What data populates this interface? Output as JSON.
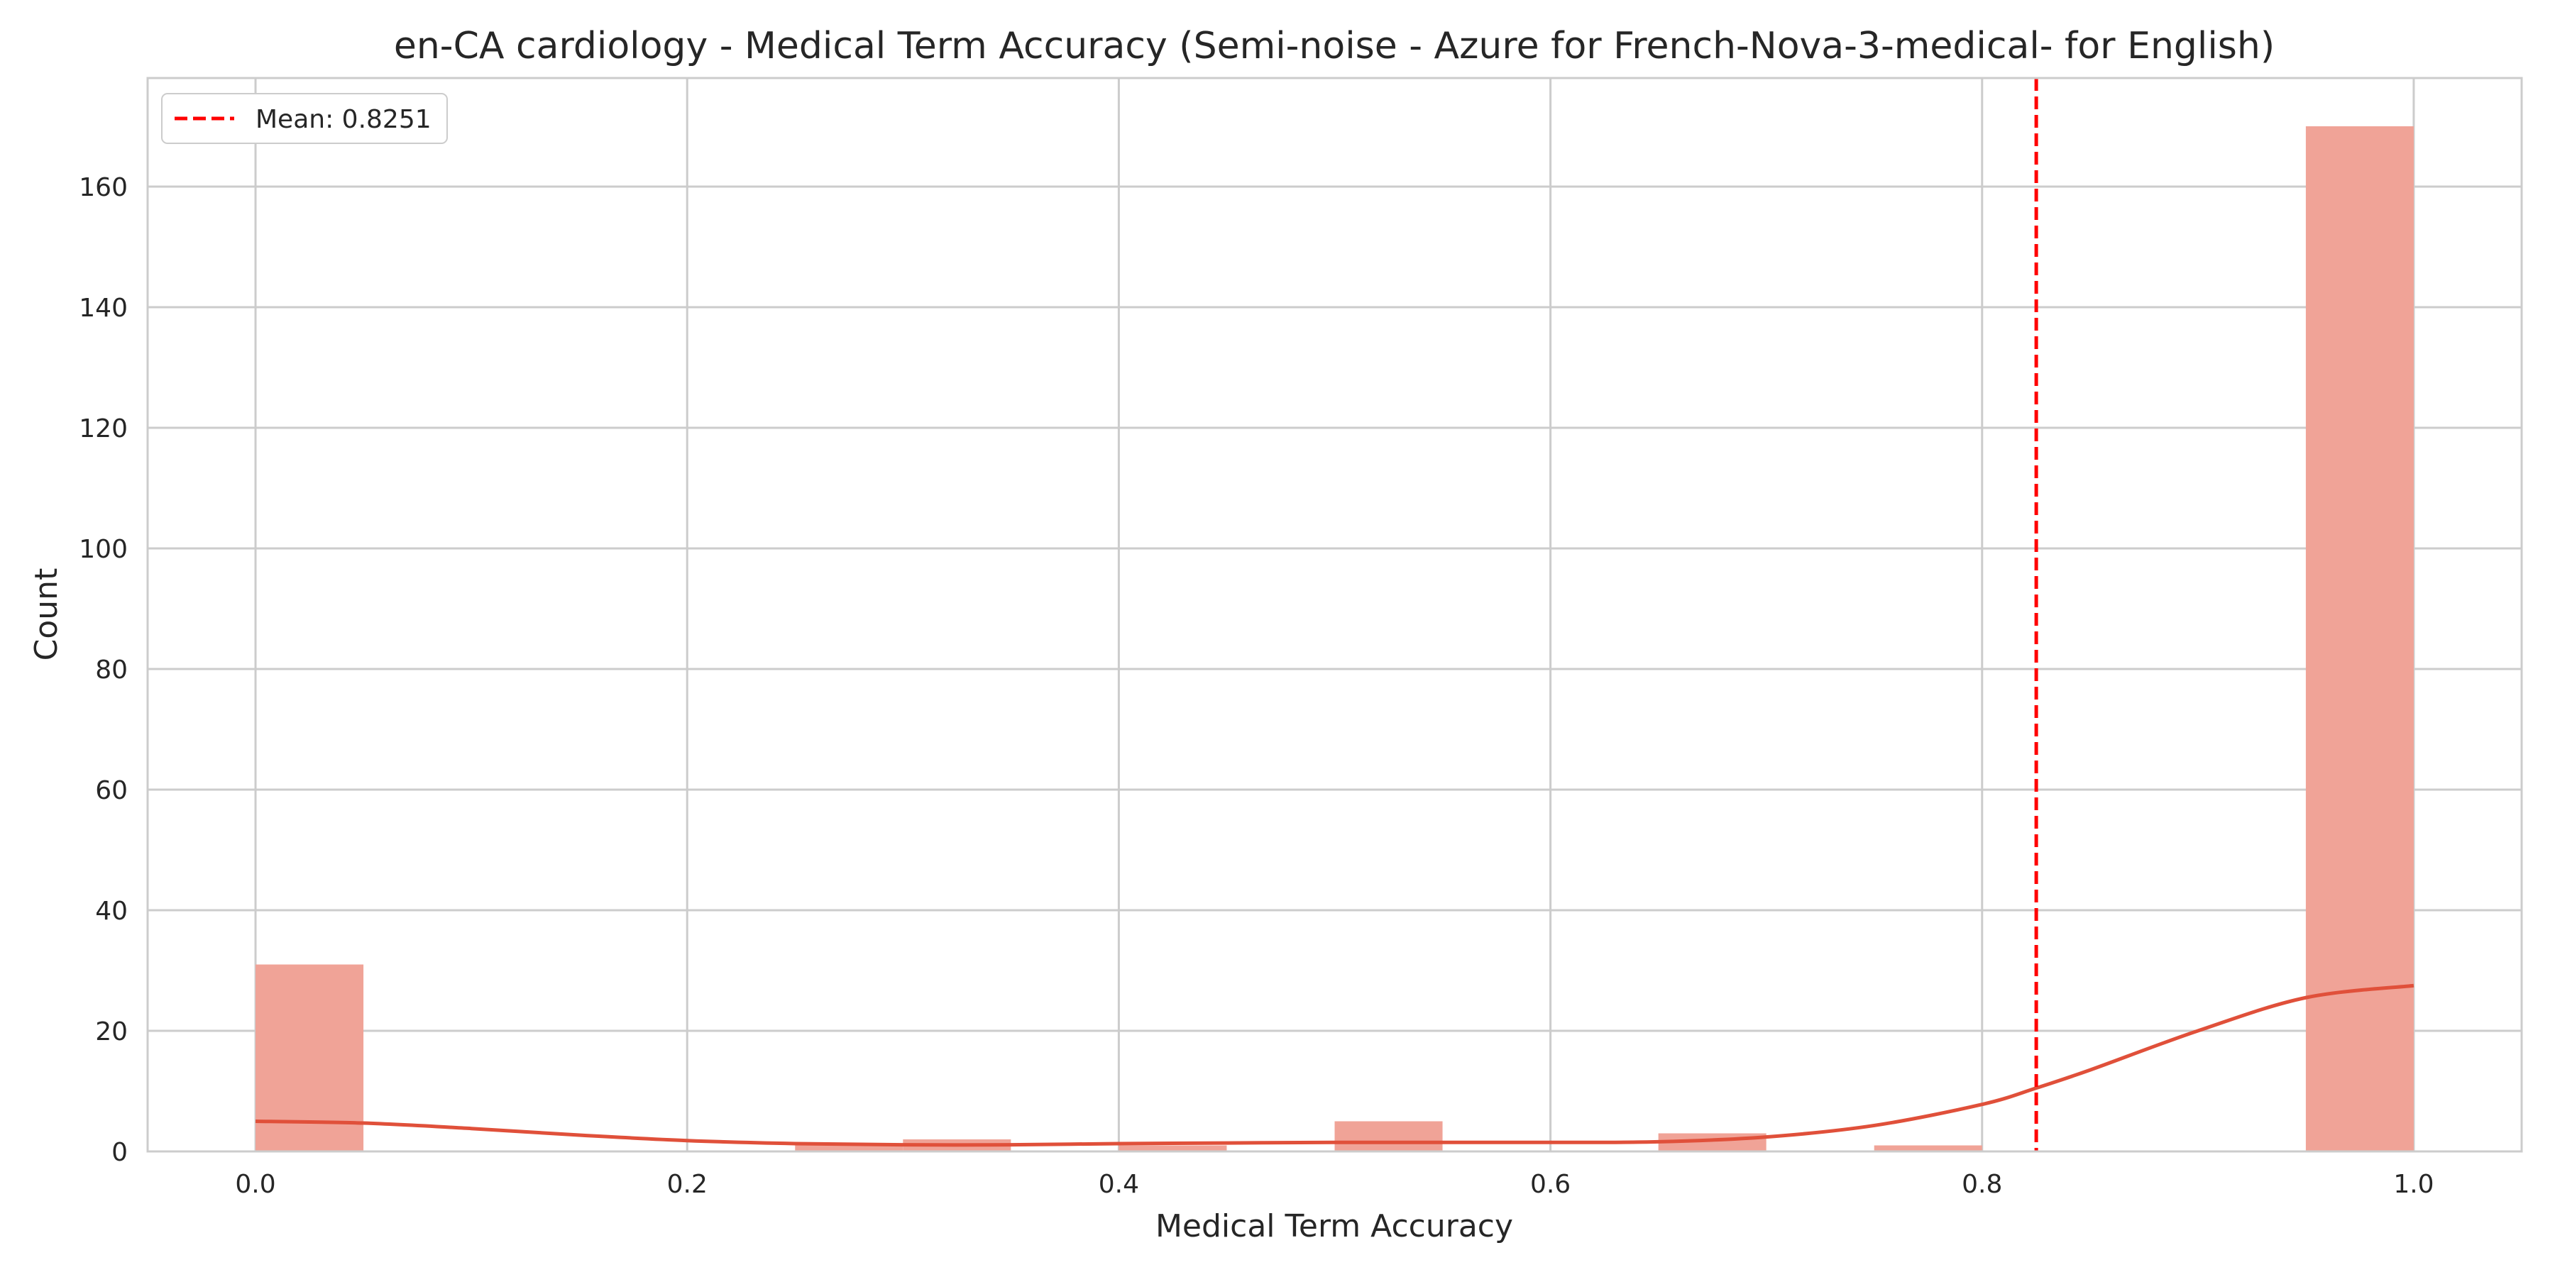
{
  "chart_data": {
    "type": "bar",
    "subtype": "histogram",
    "title": "en-CA cardiology - Medical Term Accuracy (Semi-noise - Azure for French-Nova-3-medical- for English)",
    "xlabel": "Medical Term Accuracy",
    "ylabel": "Count",
    "xlim": [
      -0.05,
      1.05
    ],
    "ylim": [
      0,
      178
    ],
    "grid": true,
    "legend_position": "upper-left",
    "x_ticks": [
      0.0,
      0.2,
      0.4,
      0.6,
      0.8,
      1.0
    ],
    "x_tick_labels": [
      "0.0",
      "0.2",
      "0.4",
      "0.6",
      "0.8",
      "1.0"
    ],
    "y_ticks": [
      0,
      20,
      40,
      60,
      80,
      100,
      120,
      140,
      160
    ],
    "y_tick_labels": [
      "0",
      "20",
      "40",
      "60",
      "80",
      "100",
      "120",
      "140",
      "160"
    ],
    "bin_edges": [
      0.0,
      0.05,
      0.1,
      0.15,
      0.2,
      0.25,
      0.3,
      0.35,
      0.4,
      0.45,
      0.5,
      0.55,
      0.6,
      0.65,
      0.7,
      0.75,
      0.8,
      0.85,
      0.9,
      0.95,
      1.0
    ],
    "counts": [
      31,
      0,
      0,
      0,
      0,
      1,
      2,
      0,
      1,
      0,
      5,
      0,
      0,
      3,
      0,
      1,
      0,
      0,
      0,
      170
    ],
    "bar_color": "#f0a397",
    "kde": {
      "color": "#e0503a",
      "x": [
        0.0,
        0.05,
        0.1,
        0.15,
        0.2,
        0.25,
        0.3,
        0.35,
        0.4,
        0.45,
        0.5,
        0.55,
        0.6,
        0.65,
        0.7,
        0.75,
        0.8,
        0.825,
        0.85,
        0.9,
        0.95,
        1.0
      ],
      "y": [
        5.0,
        4.7,
        3.8,
        2.7,
        1.8,
        1.3,
        1.1,
        1.1,
        1.3,
        1.4,
        1.5,
        1.5,
        1.5,
        1.6,
        2.4,
        4.3,
        7.8,
        10.5,
        13.5,
        20.0,
        25.5,
        27.5
      ]
    },
    "mean_line": {
      "x": 0.8251,
      "label": "Mean: 0.8251",
      "color": "#ff0000",
      "style": "dashed"
    }
  }
}
